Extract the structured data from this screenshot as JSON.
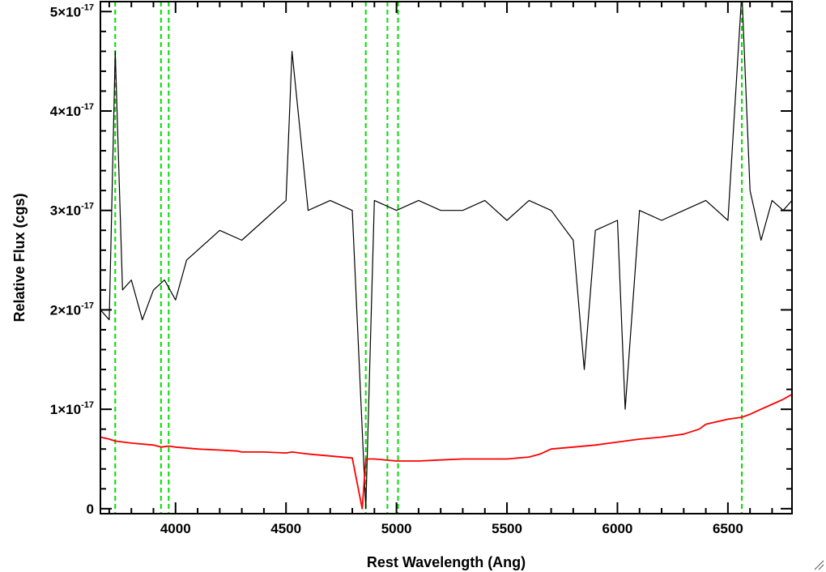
{
  "chart_data": {
    "type": "line",
    "xlabel": "Rest Wavelength (Ang)",
    "ylabel": "Relative Flux (cgs)",
    "xlim": [
      3660,
      6790
    ],
    "ylim": [
      -0.05,
      5.1
    ],
    "y_scale_exponent": -17,
    "x_ticks": [
      4000,
      4500,
      5000,
      5500,
      6000,
      6500
    ],
    "x_tick_labels": [
      "4000",
      "4500",
      "5000",
      "5500",
      "6000",
      "6500"
    ],
    "y_ticks": [
      0,
      1,
      2,
      3,
      4,
      5
    ],
    "y_tick_labels": [
      {
        "mantissa": "0",
        "exp": ""
      },
      {
        "mantissa": "1×10",
        "exp": "-17"
      },
      {
        "mantissa": "2×10",
        "exp": "-17"
      },
      {
        "mantissa": "3×10",
        "exp": "-17"
      },
      {
        "mantissa": "4×10",
        "exp": "-17"
      },
      {
        "mantissa": "5×10",
        "exp": "-17"
      }
    ],
    "grid": false,
    "reference_lines": {
      "color": "#00dd00",
      "style": "dashed",
      "x": [
        3727,
        3934,
        3969,
        4861,
        4959,
        5007,
        6563
      ]
    },
    "series": [
      {
        "color": "#000000",
        "x": [
          3660,
          3700,
          3727,
          3760,
          3800,
          3850,
          3900,
          3950,
          4000,
          4050,
          4100,
          4200,
          4300,
          4400,
          4500,
          4527,
          4600,
          4700,
          4800,
          4861,
          4900,
          5000,
          5100,
          5200,
          5300,
          5400,
          5500,
          5600,
          5700,
          5800,
          5850,
          5900,
          6000,
          6035,
          6100,
          6200,
          6300,
          6400,
          6500,
          6563,
          6600,
          6650,
          6700,
          6750,
          6790
        ],
        "y": [
          2.0,
          1.9,
          4.6,
          2.2,
          2.3,
          1.9,
          2.2,
          2.3,
          2.1,
          2.5,
          2.6,
          2.8,
          2.7,
          2.9,
          3.1,
          4.6,
          3.0,
          3.1,
          3.0,
          0.0,
          3.1,
          3.0,
          3.1,
          3.0,
          3.0,
          3.1,
          2.9,
          3.1,
          3.0,
          2.7,
          1.4,
          2.8,
          2.9,
          1.0,
          3.0,
          2.9,
          3.0,
          3.1,
          2.9,
          5.2,
          3.2,
          2.7,
          3.1,
          3.0,
          3.1
        ]
      },
      {
        "color": "#ff0000",
        "x": [
          3660,
          3700,
          3727,
          3800,
          3900,
          3934,
          3969,
          4000,
          4100,
          4200,
          4280,
          4300,
          4400,
          4500,
          4527,
          4600,
          4700,
          4800,
          4845,
          4861,
          4900,
          5000,
          5100,
          5200,
          5300,
          5400,
          5500,
          5600,
          5650,
          5700,
          5800,
          5900,
          6000,
          6100,
          6200,
          6300,
          6370,
          6400,
          6500,
          6563,
          6600,
          6650,
          6700,
          6750,
          6790
        ],
        "y": [
          0.72,
          0.7,
          0.68,
          0.66,
          0.64,
          0.62,
          0.63,
          0.62,
          0.6,
          0.59,
          0.58,
          0.57,
          0.57,
          0.56,
          0.57,
          0.55,
          0.53,
          0.51,
          0.0,
          0.5,
          0.5,
          0.48,
          0.48,
          0.49,
          0.5,
          0.5,
          0.5,
          0.52,
          0.55,
          0.6,
          0.62,
          0.64,
          0.67,
          0.7,
          0.72,
          0.75,
          0.8,
          0.85,
          0.9,
          0.92,
          0.95,
          1.0,
          1.05,
          1.1,
          1.15
        ]
      }
    ]
  }
}
